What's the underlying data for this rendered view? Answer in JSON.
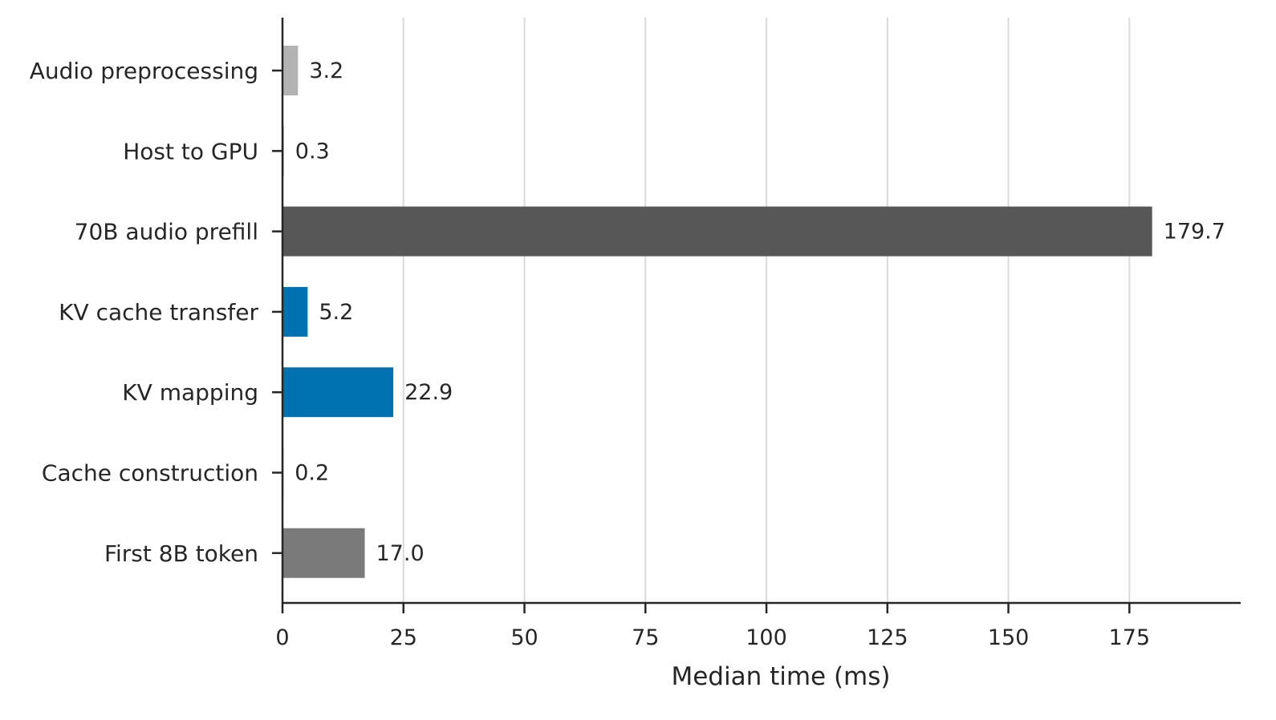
{
  "chart_data": {
    "type": "bar",
    "orientation": "horizontal",
    "categories": [
      "Audio preprocessing",
      "Host to GPU",
      "70B audio prefill",
      "KV cache transfer",
      "KV mapping",
      "Cache construction",
      "First 8B token"
    ],
    "values": [
      3.2,
      0.3,
      179.7,
      5.2,
      22.9,
      0.2,
      17.0
    ],
    "value_labels": [
      "3.2",
      "0.3",
      "179.7",
      "5.2",
      "22.9",
      "0.2",
      "17.0"
    ],
    "bar_colors": [
      "#b3b3b3",
      "#b3b3b3",
      "#575757",
      "#0072b2",
      "#0072b2",
      "#0072b2",
      "#7a7a7a"
    ],
    "title": "",
    "xlabel": "Median time (ms)",
    "ylabel": "",
    "xlim": [
      0,
      198
    ],
    "xticks": [
      0,
      25,
      50,
      75,
      100,
      125,
      150,
      175
    ],
    "xtick_labels": [
      "0",
      "25",
      "50",
      "75",
      "100",
      "125",
      "150",
      "175"
    ],
    "grid": "vertical",
    "legend": "none"
  },
  "colors": {
    "axis": "#262626",
    "grid": "#d9d9d9"
  }
}
